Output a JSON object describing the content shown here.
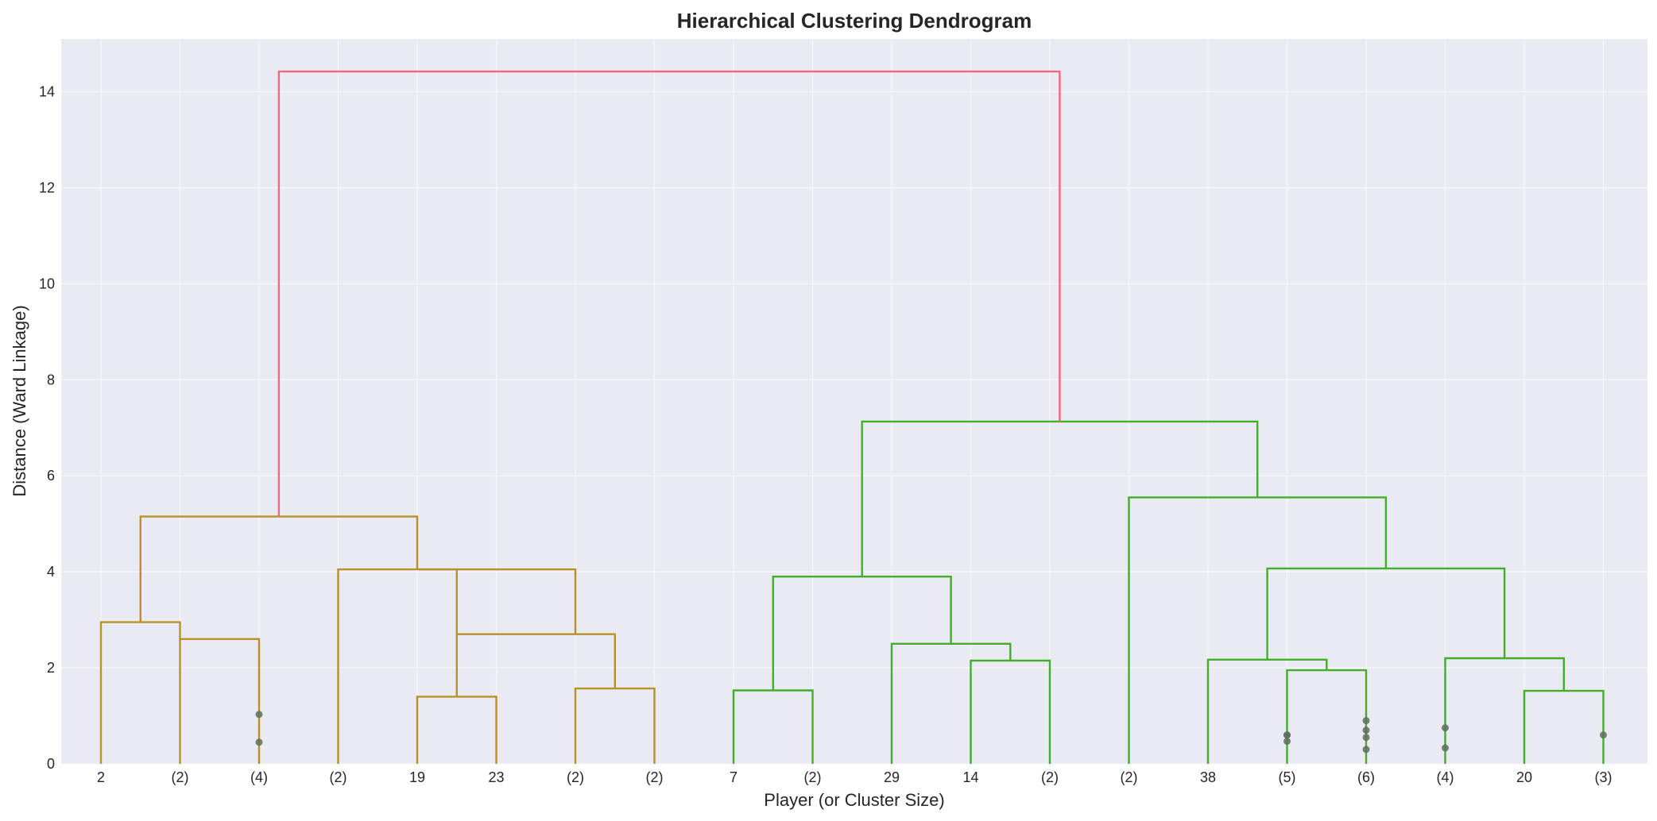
{
  "chart_data": {
    "type": "dendrogram",
    "title": "Hierarchical Clustering Dendrogram",
    "xlabel": "Player (or Cluster Size)",
    "ylabel": "Distance (Ward Linkage)",
    "ylim": [
      0,
      15.1
    ],
    "yticks": [
      0,
      2,
      4,
      6,
      8,
      10,
      12,
      14
    ],
    "grid": true,
    "leaf_labels": [
      "2",
      "(2)",
      "(4)",
      "(2)",
      "19",
      "23",
      "(2)",
      "(2)",
      "7",
      "(2)",
      "29",
      "14",
      "(2)",
      "(2)",
      "38",
      "(5)",
      "(6)",
      "(4)",
      "20",
      "(3)"
    ],
    "colors": {
      "root": "#f0677f",
      "cluster_1": "#b8912a",
      "cluster_2": "#43ae2a",
      "background": "#eaeaf2",
      "grid": "#f7f7fa",
      "dots": "#5e6e5e"
    },
    "links": [
      {
        "x": [
          1,
          1,
          2,
          2
        ],
        "y": [
          0,
          2.95,
          2.95,
          2.6
        ],
        "color": "cluster_1"
      },
      {
        "x": [
          2,
          2,
          3,
          3
        ],
        "y": [
          0,
          2.6,
          2.6,
          0
        ],
        "color": "cluster_1"
      },
      {
        "x": [
          1.5,
          1.5,
          5,
          5
        ],
        "y": [
          2.95,
          5.15,
          5.15,
          4.05
        ],
        "color": "cluster_1"
      },
      {
        "x": [
          5,
          5,
          7,
          7
        ],
        "y": [
          4.05,
          4.05,
          4.05,
          2.7
        ],
        "color": "cluster_1"
      },
      {
        "x": [
          4,
          4,
          5.5,
          5.5
        ],
        "y": [
          0,
          4.05,
          4.05,
          2.7
        ],
        "color": "cluster_1"
      },
      {
        "x": [
          5,
          5,
          6,
          6
        ],
        "y": [
          0,
          1.4,
          1.4,
          0
        ],
        "color": "cluster_1"
      },
      {
        "x": [
          7,
          7,
          8,
          8
        ],
        "y": [
          0,
          1.57,
          1.57,
          0
        ],
        "color": "cluster_1"
      },
      {
        "x": [
          5.5,
          5.5,
          7.5,
          7.5
        ],
        "y": [
          1.4,
          2.7,
          2.7,
          1.57
        ],
        "color": "cluster_1"
      },
      {
        "x": [
          9,
          9,
          10,
          10
        ],
        "y": [
          0,
          1.53,
          1.53,
          0
        ],
        "color": "cluster_2"
      },
      {
        "x": [
          12,
          12,
          13,
          13
        ],
        "y": [
          0,
          2.15,
          2.15,
          0
        ],
        "color": "cluster_2"
      },
      {
        "x": [
          11,
          11,
          12.5,
          12.5
        ],
        "y": [
          0,
          2.5,
          2.5,
          2.15
        ],
        "color": "cluster_2"
      },
      {
        "x": [
          9.5,
          9.5,
          11.75,
          11.75
        ],
        "y": [
          1.53,
          3.9,
          3.9,
          2.5
        ],
        "color": "cluster_2"
      },
      {
        "x": [
          16,
          16,
          17,
          17
        ],
        "y": [
          0,
          1.95,
          1.95,
          0
        ],
        "color": "cluster_2"
      },
      {
        "x": [
          15,
          15,
          16.5,
          16.5
        ],
        "y": [
          0,
          2.17,
          2.17,
          1.95
        ],
        "color": "cluster_2"
      },
      {
        "x": [
          19,
          19,
          20,
          20
        ],
        "y": [
          0,
          1.52,
          1.52,
          0
        ],
        "color": "cluster_2"
      },
      {
        "x": [
          18,
          18,
          19.5,
          19.5
        ],
        "y": [
          0,
          2.2,
          2.2,
          1.52
        ],
        "color": "cluster_2"
      },
      {
        "x": [
          15.75,
          15.75,
          18.75,
          18.75
        ],
        "y": [
          2.17,
          4.07,
          4.07,
          2.2
        ],
        "color": "cluster_2"
      },
      {
        "x": [
          14,
          14,
          17.25,
          17.25
        ],
        "y": [
          0,
          5.55,
          5.55,
          4.07
        ],
        "color": "cluster_2"
      },
      {
        "x": [
          10.625,
          10.625,
          15.625,
          15.625
        ],
        "y": [
          3.9,
          7.13,
          7.13,
          5.55
        ],
        "color": "cluster_2"
      },
      {
        "x": [
          3.25,
          3.25,
          13.125,
          13.125
        ],
        "y": [
          5.15,
          14.42,
          14.42,
          7.13
        ],
        "color": "root"
      }
    ],
    "leaf_dots": [
      {
        "x": 3,
        "y": [
          1.03,
          0.45
        ]
      },
      {
        "x": 16,
        "y": [
          0.6,
          0.6,
          0.47
        ]
      },
      {
        "x": 17,
        "y": [
          0.9,
          0.7,
          0.55,
          0.3
        ]
      },
      {
        "x": 18,
        "y": [
          0.75,
          0.33
        ]
      },
      {
        "x": 20,
        "y": [
          0.6
        ]
      }
    ]
  }
}
